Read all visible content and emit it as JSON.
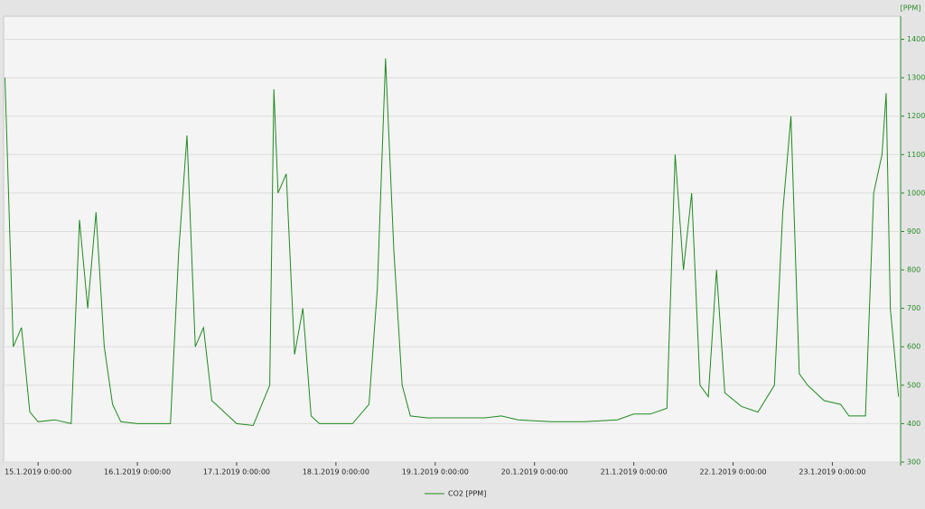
{
  "chart_data": {
    "type": "line",
    "y_label": "[PPM]",
    "x": [
      "14.1.2019 16:00:00",
      "14.1.2019 18:00:00",
      "14.1.2019 20:00:00",
      "14.1.2019 22:00:00",
      "15.1.2019 0:00:00",
      "15.1.2019 4:00:00",
      "15.1.2019 8:00:00",
      "15.1.2019 10:00:00",
      "15.1.2019 12:00:00",
      "15.1.2019 14:00:00",
      "15.1.2019 16:00:00",
      "15.1.2019 18:00:00",
      "15.1.2019 20:00:00",
      "16.1.2019 0:00:00",
      "16.1.2019 4:00:00",
      "16.1.2019 8:00:00",
      "16.1.2019 10:00:00",
      "16.1.2019 12:00:00",
      "16.1.2019 14:00:00",
      "16.1.2019 16:00:00",
      "16.1.2019 18:00:00",
      "16.1.2019 20:00:00",
      "17.1.2019 0:00:00",
      "17.1.2019 4:00:00",
      "17.1.2019 8:00:00",
      "17.1.2019 9:00:00",
      "17.1.2019 10:00:00",
      "17.1.2019 12:00:00",
      "17.1.2019 14:00:00",
      "17.1.2019 16:00:00",
      "17.1.2019 18:00:00",
      "17.1.2019 20:00:00",
      "18.1.2019 0:00:00",
      "18.1.2019 4:00:00",
      "18.1.2019 8:00:00",
      "18.1.2019 10:00:00",
      "18.1.2019 12:00:00",
      "18.1.2019 14:00:00",
      "18.1.2019 16:00:00",
      "18.1.2019 18:00:00",
      "18.1.2019 22:00:00",
      "19.1.2019 4:00:00",
      "19.1.2019 12:00:00",
      "19.1.2019 16:00:00",
      "19.1.2019 20:00:00",
      "20.1.2019 4:00:00",
      "20.1.2019 12:00:00",
      "20.1.2019 20:00:00",
      "21.1.2019 0:00:00",
      "21.1.2019 4:00:00",
      "21.1.2019 8:00:00",
      "21.1.2019 10:00:00",
      "21.1.2019 12:00:00",
      "21.1.2019 14:00:00",
      "21.1.2019 16:00:00",
      "21.1.2019 18:00:00",
      "21.1.2019 20:00:00",
      "21.1.2019 22:00:00",
      "22.1.2019 2:00:00",
      "22.1.2019 6:00:00",
      "22.1.2019 10:00:00",
      "22.1.2019 12:00:00",
      "22.1.2019 14:00:00",
      "22.1.2019 16:00:00",
      "22.1.2019 18:00:00",
      "22.1.2019 22:00:00",
      "23.1.2019 2:00:00",
      "23.1.2019 4:00:00",
      "23.1.2019 8:00:00",
      "23.1.2019 10:00:00",
      "23.1.2019 12:00:00",
      "23.1.2019 13:00:00",
      "23.1.2019 14:00:00",
      "23.1.2019 16:00:00"
    ],
    "series": [
      {
        "name": "CO2 [PPM]",
        "color": "#1f8a1f",
        "values": [
          1300,
          600,
          650,
          430,
          405,
          410,
          400,
          930,
          700,
          950,
          600,
          450,
          405,
          400,
          400,
          400,
          850,
          1150,
          600,
          650,
          460,
          440,
          400,
          395,
          500,
          1270,
          1000,
          1050,
          580,
          700,
          420,
          400,
          400,
          400,
          450,
          750,
          1350,
          850,
          500,
          420,
          415,
          415,
          415,
          420,
          410,
          405,
          405,
          410,
          425,
          425,
          440,
          1100,
          800,
          1000,
          500,
          470,
          800,
          480,
          445,
          430,
          500,
          950,
          1200,
          530,
          500,
          460,
          450,
          420,
          420,
          1000,
          1100,
          1260,
          700,
          470
        ]
      }
    ],
    "xlim": [
      "14.1.2019 15:40:00",
      "23.1.2019 16:30:00"
    ],
    "xticks": [
      "15.1.2019 0:00:00",
      "16.1.2019 0:00:00",
      "17.1.2019 0:00:00",
      "18.1.2019 0:00:00",
      "19.1.2019 0:00:00",
      "20.1.2019 0:00:00",
      "21.1.2019 0:00:00",
      "22.1.2019 0:00:00",
      "23.1.2019 0:00:00"
    ],
    "ylim": [
      300,
      1460
    ],
    "yticks": [
      300,
      400,
      500,
      600,
      700,
      800,
      900,
      1000,
      1100,
      1200,
      1300,
      1400
    ],
    "grid": true
  }
}
